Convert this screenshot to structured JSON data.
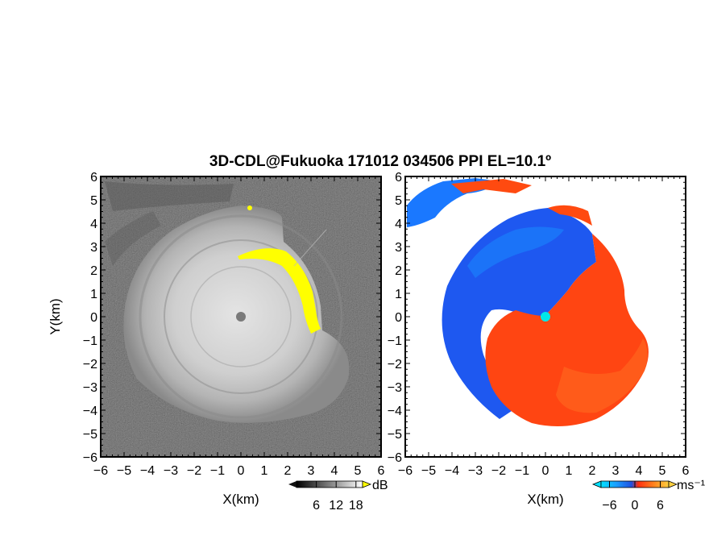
{
  "chart_data": [
    {
      "type": "heatmap",
      "title": "3D-CDL@Fukuoka 171012 034506 PPI EL=10.1º",
      "xlabel": "X(km)",
      "ylabel": "Y(km)",
      "x_ticks": [
        "−6",
        "−5",
        "−4",
        "−3",
        "−2",
        "−1",
        "0",
        "1",
        "2",
        "3",
        "4",
        "5",
        "6"
      ],
      "y_ticks": [
        "6",
        "5",
        "4",
        "3",
        "2",
        "1",
        "0",
        "−1",
        "−2",
        "−3",
        "−4",
        "−5",
        "−6"
      ],
      "xlim": [
        -6,
        6
      ],
      "ylim": [
        -6,
        6
      ],
      "field": "reflectivity (grayscale)",
      "colorbar": {
        "ticks": [
          "6",
          "12",
          "18"
        ],
        "unit": "dB",
        "range": [
          0,
          20
        ]
      },
      "highlight_color": "#ffff00",
      "radar_site": {
        "x": 0,
        "y": 0
      }
    },
    {
      "type": "heatmap",
      "xlabel": "X(km)",
      "x_ticks": [
        "−6",
        "−5",
        "−4",
        "−3",
        "−2",
        "−1",
        "0",
        "1",
        "2",
        "3",
        "4",
        "5",
        "6"
      ],
      "y_ticks": [
        "6",
        "5",
        "4",
        "3",
        "2",
        "1",
        "0",
        "−1",
        "−2",
        "−3",
        "−4",
        "−5",
        "−6"
      ],
      "xlim": [
        -6,
        6
      ],
      "ylim": [
        -6,
        6
      ],
      "field": "Doppler velocity",
      "colorbar": {
        "ticks": [
          "−6",
          "0",
          "6"
        ],
        "unit": "ms⁻¹",
        "range": [
          -8,
          8
        ]
      },
      "colors": {
        "approaching": "#1e50e6",
        "receding": "#ff4a10",
        "near_zero": "#00e8e8"
      },
      "radar_site": {
        "x": 0,
        "y": 0
      }
    }
  ]
}
